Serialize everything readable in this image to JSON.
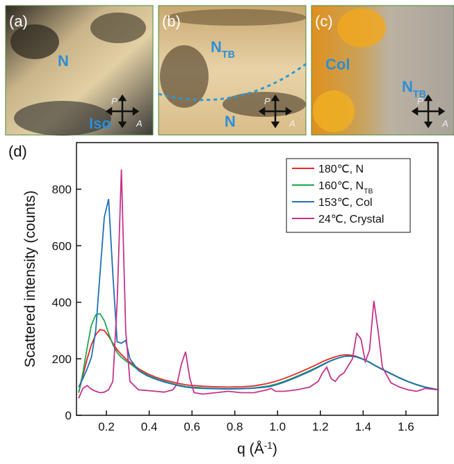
{
  "panels": [
    {
      "label": "(a)",
      "phases": [
        {
          "text": "N"
        },
        {
          "text": "Iso"
        }
      ],
      "polarizer": "P",
      "analyzer": "A"
    },
    {
      "label": "(b)",
      "phases": [
        {
          "text": "N",
          "sub": "TB"
        },
        {
          "text": "N"
        }
      ],
      "polarizer": "P",
      "analyzer": "A"
    },
    {
      "label": "(c)",
      "phases": [
        {
          "text": "Col"
        },
        {
          "text": "N",
          "sub": "TB"
        }
      ],
      "polarizer": "P",
      "analyzer": "A"
    }
  ],
  "chart_data": {
    "type": "line",
    "panel_label": "(d)",
    "y_label": "Scattered intensity (counts)",
    "x_label": "q (Å",
    "x_label_sup": "-1",
    "x_label_end": ")",
    "xlim": [
      0.06,
      1.75
    ],
    "ylim": [
      0,
      965
    ],
    "xticks": [
      0.2,
      0.4,
      0.6,
      0.8,
      {
        "value": 1,
        "label": "1.0"
      },
      1.2,
      1.4,
      1.6
    ],
    "yticks": [
      0,
      200,
      400,
      600,
      800
    ],
    "legend": "upper-right",
    "x": [
      0.07,
      0.09,
      0.11,
      0.13,
      0.15,
      0.17,
      0.19,
      0.21,
      0.23,
      0.25,
      0.27,
      0.29,
      0.31,
      0.35,
      0.39,
      0.43,
      0.47,
      0.51,
      0.53,
      0.55,
      0.57,
      0.59,
      0.61,
      0.65,
      0.71,
      0.77,
      0.83,
      0.89,
      0.95,
      0.97,
      0.99,
      1.03,
      1.09,
      1.15,
      1.19,
      1.21,
      1.23,
      1.25,
      1.27,
      1.29,
      1.31,
      1.33,
      1.35,
      1.37,
      1.39,
      1.41,
      1.43,
      1.45,
      1.47,
      1.49,
      1.53,
      1.57,
      1.61,
      1.65,
      1.69,
      1.75
    ],
    "series": [
      {
        "name": "180℃, N",
        "color": "#e8262a",
        "values": [
          80,
          140,
          200,
          250,
          285,
          303,
          300,
          280,
          255,
          232,
          215,
          200,
          188,
          165,
          148,
          135,
          125,
          118,
          114,
          111,
          108,
          106,
          105,
          103,
          101,
          100,
          101,
          104,
          112,
          116,
          120,
          130,
          148,
          168,
          182,
          190,
          196,
          202,
          207,
          211,
          214,
          214,
          212,
          208,
          202,
          195,
          187,
          178,
          170,
          162,
          147,
          132,
          119,
          108,
          99,
          90
        ]
      },
      {
        "name": "160℃, N",
        "name_sub": "TB",
        "color": "#1fa84b",
        "values": [
          80,
          150,
          240,
          320,
          355,
          360,
          335,
          290,
          250,
          222,
          205,
          193,
          183,
          160,
          143,
          130,
          120,
          112,
          108,
          105,
          102,
          100,
          99,
          97,
          95,
          94,
          95,
          97,
          103,
          106,
          110,
          120,
          138,
          158,
          172,
          180,
          187,
          194,
          200,
          204,
          208,
          210,
          209,
          206,
          201,
          195,
          187,
          178,
          170,
          162,
          147,
          132,
          119,
          108,
          99,
          90
        ]
      },
      {
        "name": "153℃, Col",
        "color": "#1f6fb4",
        "values": [
          100,
          130,
          165,
          205,
          300,
          500,
          700,
          765,
          500,
          260,
          255,
          265,
          200,
          158,
          140,
          128,
          118,
          110,
          106,
          103,
          100,
          98,
          97,
          95,
          94,
          93,
          94,
          96,
          100,
          103,
          107,
          117,
          135,
          155,
          170,
          178,
          186,
          193,
          199,
          204,
          208,
          210,
          209,
          206,
          201,
          195,
          188,
          179,
          171,
          163,
          148,
          133,
          120,
          109,
          100,
          91
        ]
      },
      {
        "name": "24℃, Crystal",
        "color": "#c4338a",
        "values": [
          60,
          95,
          105,
          92,
          85,
          80,
          82,
          90,
          120,
          400,
          870,
          300,
          120,
          90,
          88,
          85,
          82,
          90,
          110,
          180,
          225,
          130,
          80,
          75,
          80,
          85,
          80,
          80,
          90,
          95,
          85,
          85,
          90,
          100,
          120,
          150,
          170,
          130,
          120,
          140,
          150,
          175,
          200,
          290,
          270,
          190,
          230,
          405,
          300,
          170,
          115,
          100,
          90,
          85,
          95,
          90
        ]
      }
    ]
  }
}
